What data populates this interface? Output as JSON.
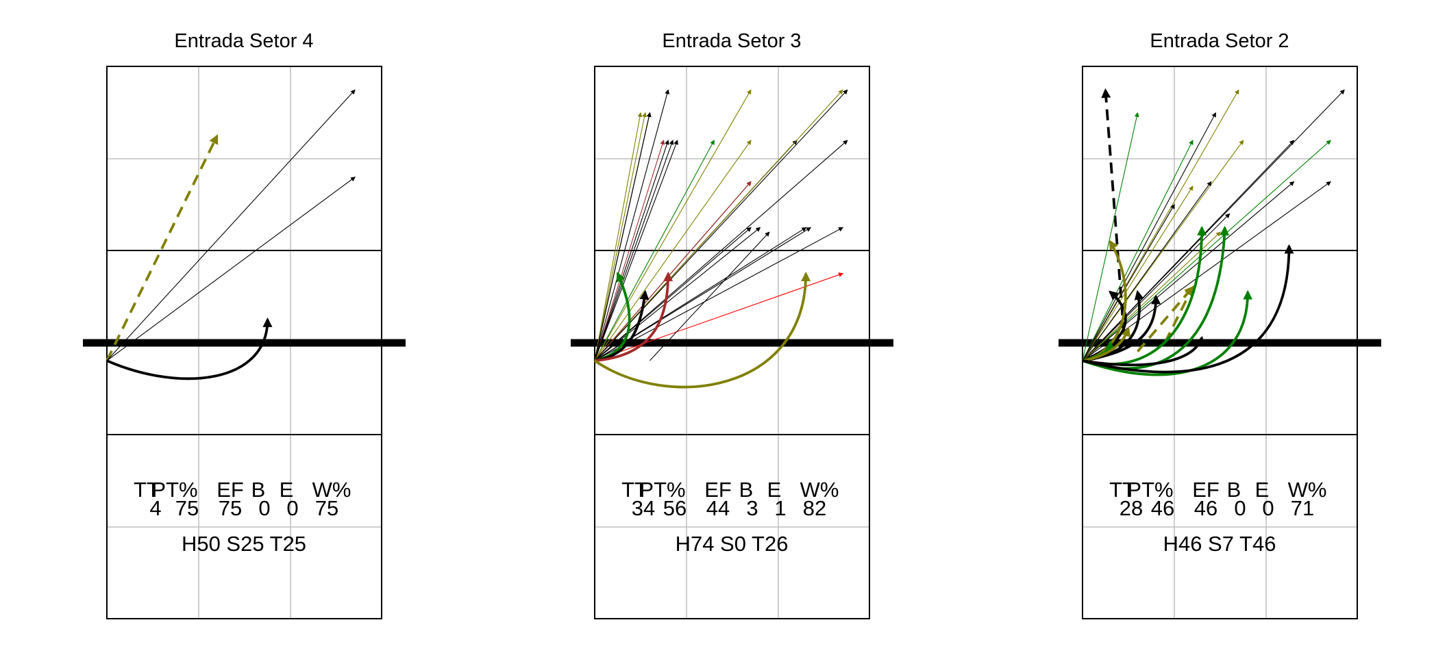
{
  "colors": {
    "black": "#000000",
    "olive": "#808000",
    "green": "#008000",
    "darkred": "#a52a2a",
    "red": "#ff0000",
    "grid": "#bebebe"
  },
  "stat_headers": [
    "TT",
    "PT%",
    "EF",
    "B",
    "E",
    "W%"
  ],
  "panels": [
    {
      "title": "Entrada Setor 4",
      "stats": [
        "4",
        "75",
        "75",
        "0",
        "0",
        "75"
      ],
      "zones": "H50 S25 T25",
      "arrows": [
        {
          "c": "olive",
          "t": "dash",
          "p": [
            [
              0,
              0
            ],
            [
              1.2,
              2.45
            ]
          ]
        },
        {
          "c": "black",
          "t": "thin",
          "p": [
            [
              0,
              0
            ],
            [
              2.7,
              2.95
            ]
          ]
        },
        {
          "c": "black",
          "t": "thin",
          "p": [
            [
              0,
              0
            ],
            [
              2.7,
              2.0
            ]
          ]
        },
        {
          "c": "black",
          "t": "curve",
          "p": [
            [
              0,
              0
            ],
            [
              0.8,
              -0.35
            ],
            [
              1.75,
              -0.25
            ],
            [
              1.75,
              0.45
            ]
          ]
        }
      ]
    },
    {
      "title": "Entrada Setor 3",
      "stats": [
        "34",
        "56",
        "44",
        "3",
        "1",
        "82"
      ],
      "zones": "H74 S0 T26",
      "arrows": [
        {
          "c": "olive",
          "t": "thin",
          "p": [
            [
              0,
              0
            ],
            [
              0.5,
              2.7
            ]
          ]
        },
        {
          "c": "olive",
          "t": "thin",
          "p": [
            [
              0,
              0
            ],
            [
              0.55,
              2.7
            ]
          ]
        },
        {
          "c": "black",
          "t": "thin",
          "p": [
            [
              0,
              0
            ],
            [
              0.6,
              2.7
            ]
          ]
        },
        {
          "c": "black",
          "t": "thin",
          "p": [
            [
              0,
              0
            ],
            [
              0.6,
              2.7
            ]
          ]
        },
        {
          "c": "black",
          "t": "thin",
          "p": [
            [
              0,
              0
            ],
            [
              0.8,
              2.95
            ]
          ]
        },
        {
          "c": "darkred",
          "t": "thin",
          "p": [
            [
              0,
              0
            ],
            [
              0.75,
              2.4
            ]
          ]
        },
        {
          "c": "black",
          "t": "thin",
          "p": [
            [
              0,
              0
            ],
            [
              0.8,
              2.4
            ]
          ]
        },
        {
          "c": "black",
          "t": "thin",
          "p": [
            [
              0,
              0
            ],
            [
              0.85,
              2.4
            ]
          ]
        },
        {
          "c": "black",
          "t": "thin",
          "p": [
            [
              0,
              0
            ],
            [
              0.9,
              2.4
            ]
          ]
        },
        {
          "c": "green",
          "t": "thin",
          "p": [
            [
              0,
              0
            ],
            [
              1.3,
              2.4
            ]
          ]
        },
        {
          "c": "olive",
          "t": "thin",
          "p": [
            [
              0,
              0
            ],
            [
              1.7,
              2.95
            ]
          ]
        },
        {
          "c": "olive",
          "t": "thin",
          "p": [
            [
              0,
              0
            ],
            [
              1.7,
              2.4
            ]
          ]
        },
        {
          "c": "black",
          "t": "thin",
          "p": [
            [
              0,
              0
            ],
            [
              1.7,
              1.95
            ]
          ]
        },
        {
          "c": "darkred",
          "t": "thin",
          "p": [
            [
              0,
              0
            ],
            [
              1.7,
              1.95
            ]
          ]
        },
        {
          "c": "black",
          "t": "thin",
          "p": [
            [
              0,
              0
            ],
            [
              2.2,
              2.4
            ]
          ]
        },
        {
          "c": "olive",
          "t": "thin",
          "p": [
            [
              0,
              0
            ],
            [
              2.7,
              2.95
            ]
          ]
        },
        {
          "c": "black",
          "t": "thin",
          "p": [
            [
              0,
              0
            ],
            [
              2.75,
              2.95
            ]
          ]
        },
        {
          "c": "black",
          "t": "thin",
          "p": [
            [
              0,
              0
            ],
            [
              2.75,
              2.4
            ]
          ]
        },
        {
          "c": "black",
          "t": "thin",
          "p": [
            [
              0,
              0
            ],
            [
              1.7,
              1.45
            ]
          ]
        },
        {
          "c": "black",
          "t": "thin",
          "p": [
            [
              0,
              0
            ],
            [
              1.8,
              1.45
            ]
          ]
        },
        {
          "c": "black",
          "t": "thin",
          "p": [
            [
              0,
              0
            ],
            [
              2.3,
              1.45
            ]
          ]
        },
        {
          "c": "black",
          "t": "thin",
          "p": [
            [
              0,
              0
            ],
            [
              2.35,
              1.45
            ]
          ]
        },
        {
          "c": "black",
          "t": "thin",
          "p": [
            [
              0,
              0
            ],
            [
              2.7,
              1.45
            ]
          ]
        },
        {
          "c": "red",
          "t": "thin",
          "p": [
            [
              0,
              0
            ],
            [
              2.7,
              0.95
            ]
          ]
        },
        {
          "c": "black",
          "t": "thin",
          "p": [
            [
              0.6,
              0
            ],
            [
              1.9,
              1.4
            ]
          ]
        },
        {
          "c": "green",
          "t": "curve",
          "p": [
            [
              0,
              0
            ],
            [
              0.45,
              0.1
            ],
            [
              0.45,
              0.5
            ],
            [
              0.25,
              0.95
            ]
          ]
        },
        {
          "c": "black",
          "t": "curve",
          "p": [
            [
              0,
              0
            ],
            [
              0.35,
              0.05
            ],
            [
              0.5,
              0.3
            ],
            [
              0.55,
              0.75
            ]
          ]
        },
        {
          "c": "darkred",
          "t": "curve",
          "p": [
            [
              0,
              0
            ],
            [
              0.6,
              0.05
            ],
            [
              0.8,
              0.4
            ],
            [
              0.8,
              0.95
            ]
          ]
        },
        {
          "c": "olive",
          "t": "curve",
          "p": [
            [
              0,
              0
            ],
            [
              0.8,
              -0.55
            ],
            [
              2.3,
              -0.35
            ],
            [
              2.3,
              0.95
            ]
          ]
        }
      ]
    },
    {
      "title": "Entrada Setor 2",
      "stats": [
        "28",
        "46",
        "46",
        "0",
        "0",
        "71"
      ],
      "zones": "H46 S7 T46",
      "arrows": [
        {
          "c": "black",
          "t": "dash",
          "p": [
            [
              0.45,
              0.3
            ],
            [
              0.25,
              2.95
            ]
          ]
        },
        {
          "c": "green",
          "t": "thin",
          "p": [
            [
              0,
              0
            ],
            [
              0.6,
              2.7
            ]
          ]
        },
        {
          "c": "green",
          "t": "thin",
          "p": [
            [
              0,
              0
            ],
            [
              1.2,
              2.4
            ]
          ]
        },
        {
          "c": "black",
          "t": "thin",
          "p": [
            [
              0,
              0
            ],
            [
              1.45,
              2.7
            ]
          ]
        },
        {
          "c": "olive",
          "t": "thin",
          "p": [
            [
              0,
              0
            ],
            [
              1.7,
              2.95
            ]
          ]
        },
        {
          "c": "olive",
          "t": "thin",
          "p": [
            [
              0,
              0
            ],
            [
              1.75,
              2.4
            ]
          ]
        },
        {
          "c": "black",
          "t": "thin",
          "p": [
            [
              0,
              0
            ],
            [
              2.3,
              2.4
            ]
          ]
        },
        {
          "c": "black",
          "t": "thin",
          "p": [
            [
              0,
              0
            ],
            [
              2.85,
              2.95
            ]
          ]
        },
        {
          "c": "green",
          "t": "thin",
          "p": [
            [
              0,
              0
            ],
            [
              2.7,
              2.4
            ]
          ]
        },
        {
          "c": "black",
          "t": "thin",
          "p": [
            [
              0,
              0
            ],
            [
              2.3,
              1.95
            ]
          ]
        },
        {
          "c": "black",
          "t": "thin",
          "p": [
            [
              0,
              0
            ],
            [
              2.7,
              1.95
            ]
          ]
        },
        {
          "c": "black",
          "t": "thin",
          "p": [
            [
              0,
              0
            ],
            [
              1.4,
              1.95
            ]
          ]
        },
        {
          "c": "olive",
          "t": "thin",
          "p": [
            [
              0,
              0
            ],
            [
              1.2,
              1.9
            ]
          ]
        },
        {
          "c": "black",
          "t": "thin",
          "p": [
            [
              0,
              0
            ],
            [
              1.6,
              1.6
            ]
          ]
        },
        {
          "c": "olive",
          "t": "thin",
          "p": [
            [
              0,
              0
            ],
            [
              1.5,
              1.4
            ]
          ]
        },
        {
          "c": "black",
          "t": "thin",
          "p": [
            [
              0,
              0
            ],
            [
              1.0,
              1.7
            ]
          ]
        },
        {
          "c": "olive",
          "t": "dash",
          "p": [
            [
              0.6,
              0.1
            ],
            [
              1.2,
              0.8
            ]
          ]
        },
        {
          "c": "olive",
          "t": "dash",
          "p": [
            [
              0.9,
              0.2
            ],
            [
              1.2,
              0.8
            ]
          ]
        },
        {
          "c": "black",
          "t": "curve",
          "p": [
            [
              0,
              0
            ],
            [
              0.5,
              0.2
            ],
            [
              0.6,
              0.5
            ],
            [
              0.3,
              0.75
            ]
          ]
        },
        {
          "c": "olive",
          "t": "curve",
          "p": [
            [
              0,
              0
            ],
            [
              0.5,
              0.1
            ],
            [
              0.6,
              0.8
            ],
            [
              0.3,
              1.3
            ]
          ]
        },
        {
          "c": "green",
          "t": "curve",
          "p": [
            [
              0,
              0
            ],
            [
              0.2,
              0.05
            ],
            [
              0.3,
              0.1
            ],
            [
              0.3,
              0.2
            ]
          ]
        },
        {
          "c": "black",
          "t": "curve",
          "p": [
            [
              0,
              0
            ],
            [
              0.4,
              0.05
            ],
            [
              0.7,
              0.25
            ],
            [
              0.6,
              0.75
            ]
          ]
        },
        {
          "c": "black",
          "t": "curve",
          "p": [
            [
              0,
              0
            ],
            [
              0.6,
              0.1
            ],
            [
              0.8,
              0.3
            ],
            [
              0.8,
              0.7
            ]
          ]
        },
        {
          "c": "olive",
          "t": "curve",
          "p": [
            [
              0,
              0
            ],
            [
              0.3,
              0.05
            ],
            [
              0.45,
              0.2
            ],
            [
              0.5,
              0.35
            ]
          ]
        },
        {
          "c": "green",
          "t": "curve",
          "p": [
            [
              0,
              0
            ],
            [
              0.8,
              -0.2
            ],
            [
              1.3,
              0.4
            ],
            [
              1.3,
              1.45
            ]
          ]
        },
        {
          "c": "green",
          "t": "curve",
          "p": [
            [
              0,
              0
            ],
            [
              0.9,
              -0.3
            ],
            [
              1.5,
              0.2
            ],
            [
              1.55,
              1.45
            ]
          ]
        },
        {
          "c": "green",
          "t": "curve",
          "p": [
            [
              0,
              0
            ],
            [
              1.0,
              -0.35
            ],
            [
              1.8,
              -0.1
            ],
            [
              1.8,
              0.75
            ]
          ]
        },
        {
          "c": "black",
          "t": "curve",
          "p": [
            [
              0,
              0
            ],
            [
              0.6,
              -0.1
            ],
            [
              1.2,
              -0.05
            ],
            [
              1.3,
              0.25
            ]
          ]
        },
        {
          "c": "black",
          "t": "curve",
          "p": [
            [
              0,
              0
            ],
            [
              1.0,
              -0.25
            ],
            [
              2.25,
              -0.25
            ],
            [
              2.25,
              1.25
            ]
          ]
        }
      ]
    }
  ]
}
